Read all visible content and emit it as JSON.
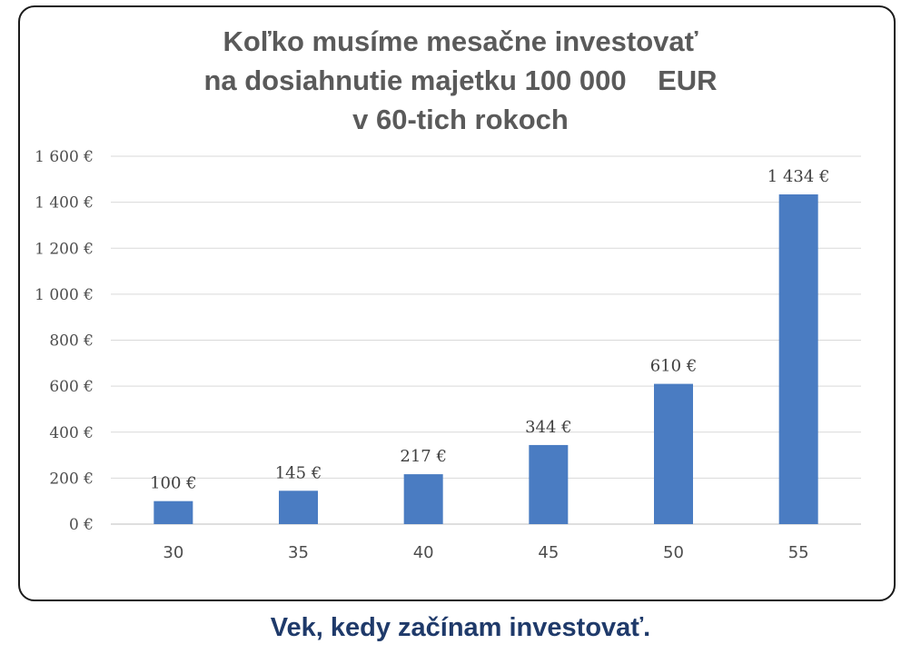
{
  "chart_data": {
    "type": "bar",
    "title_lines": [
      "Koľko musíme mesačne investovať",
      "na dosiahnutie majetku 100 000    EUR",
      "v 60-tich rokoch"
    ],
    "categories": [
      "30",
      "35",
      "40",
      "45",
      "50",
      "55"
    ],
    "values": [
      100,
      145,
      217,
      344,
      610,
      1434
    ],
    "data_labels": [
      "100 €",
      "145 €",
      "217 €",
      "344 €",
      "610 €",
      "1 434 €"
    ],
    "y_ticks": [
      0,
      200,
      400,
      600,
      800,
      1000,
      1200,
      1400,
      1600
    ],
    "y_tick_labels": [
      "0 €",
      "200 €",
      "400 €",
      "600 €",
      "800 €",
      "1 000 €",
      "1 200 €",
      "1 400 €",
      "1 600 €"
    ],
    "ylim": [
      0,
      1600
    ],
    "grid": true,
    "bar_color": "#4a7cc2",
    "grid_color": "#d9d9d9",
    "xlabel": "Vek, kedy začínam investovať.",
    "ylabel": ""
  }
}
